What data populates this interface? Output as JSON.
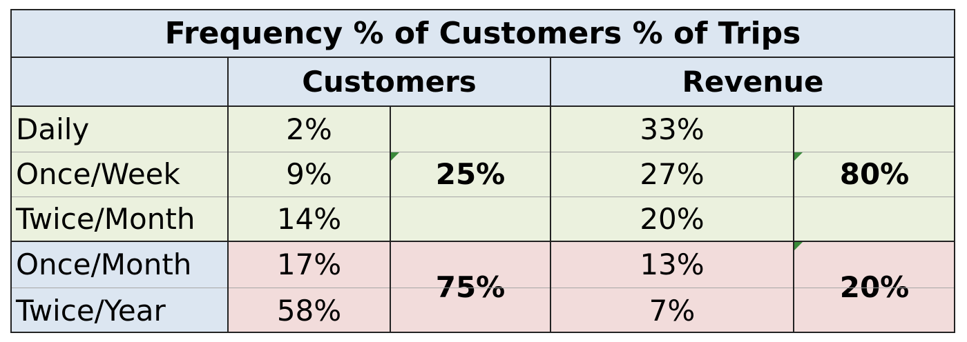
{
  "title": "Frequency % of Customers  % of Trips",
  "headers": {
    "customers": "Customers",
    "revenue": "Revenue"
  },
  "rows": [
    {
      "label": "Daily",
      "customers": "2%",
      "revenue": "33%"
    },
    {
      "label": "Once/Week",
      "customers": "9%",
      "revenue": "27%"
    },
    {
      "label": "Twice/Month",
      "customers": "14%",
      "revenue": "20%"
    },
    {
      "label": "Once/Month",
      "customers": "17%",
      "revenue": "13%"
    },
    {
      "label": "Twice/Year",
      "customers": "58%",
      "revenue": "7%"
    }
  ],
  "groups": {
    "frequent": {
      "customers_total": "25%",
      "revenue_total": "80%"
    },
    "infrequent": {
      "customers_total": "75%",
      "revenue_total": "20%"
    }
  },
  "colors": {
    "header_fill": "#dce6f1",
    "frequent_fill": "#ebf1de",
    "infrequent_fill": "#f2dcdb",
    "comment_marker": "#3a8a3a"
  }
}
